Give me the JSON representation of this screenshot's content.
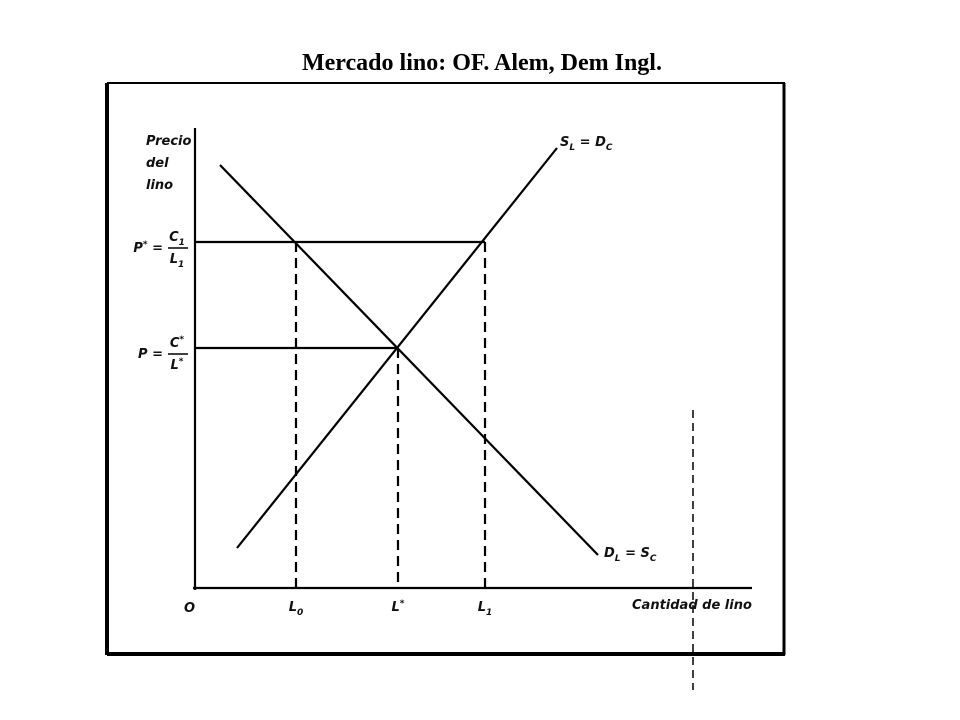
{
  "title": "Mercado lino: OF. Alem, Dem Ingl.",
  "y_axis_label": [
    "Precio",
    "del",
    "lino"
  ],
  "x_axis_label": "Cantidad de lino",
  "origin": "O",
  "supply_label": [
    {
      "text": "S"
    },
    {
      "text": "L",
      "sub": true
    },
    {
      "text": " = D"
    },
    {
      "text": "C",
      "sub": true
    }
  ],
  "demand_label": [
    {
      "text": "D"
    },
    {
      "text": "L",
      "sub": true
    },
    {
      "text": " = S"
    },
    {
      "text": "C",
      "sub": true
    }
  ],
  "price_high": {
    "lhs": [
      {
        "text": "P"
      },
      {
        "text": "*",
        "sup": true
      },
      {
        "text": " ="
      }
    ],
    "numerator": [
      {
        "text": "C"
      },
      {
        "text": "1",
        "sub": true
      }
    ],
    "denominator": [
      {
        "text": "L"
      },
      {
        "text": "1",
        "sub": true
      }
    ]
  },
  "price_eq": {
    "lhs": [
      {
        "text": "P ="
      }
    ],
    "numerator": [
      {
        "text": "C"
      },
      {
        "text": "*",
        "sup": true
      }
    ],
    "denominator": [
      {
        "text": "L"
      },
      {
        "text": "*",
        "sup": true
      }
    ]
  },
  "quantity_ticks": [
    [
      {
        "text": "L"
      },
      {
        "text": "0",
        "sub": true
      }
    ],
    [
      {
        "text": "L"
      },
      {
        "text": "*",
        "sup": true
      }
    ],
    [
      {
        "text": "L"
      },
      {
        "text": "1",
        "sub": true
      }
    ]
  ]
}
